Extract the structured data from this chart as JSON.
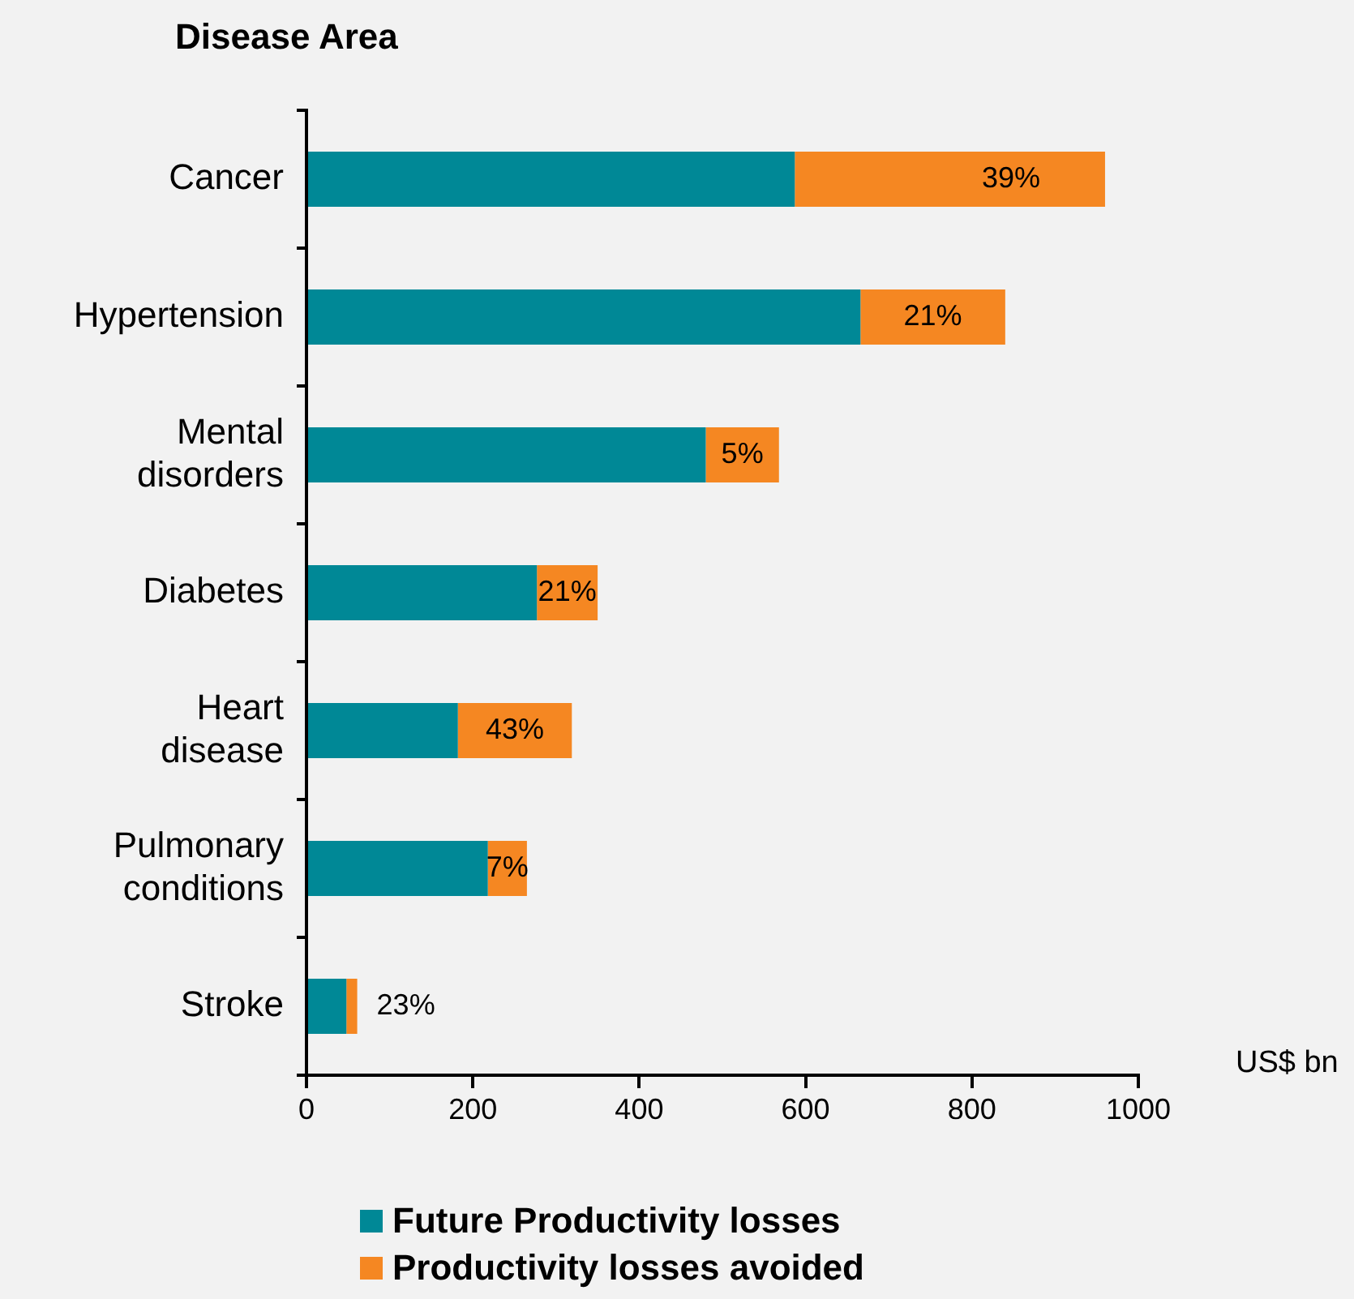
{
  "chart_data": {
    "type": "bar",
    "orientation": "horizontal",
    "stacked": true,
    "title": "Disease Area",
    "xlabel": "US$ bn",
    "categories": [
      "Cancer",
      "Hypertension",
      "Mental disorders",
      "Diabetes",
      "Heart disease",
      "Pulmonary conditions",
      "Stroke"
    ],
    "series": [
      {
        "name": "Future Productivity losses",
        "color": "#008896",
        "values": [
          587,
          666,
          480,
          277,
          182,
          218,
          48
        ]
      },
      {
        "name": "Productivity losses avoided",
        "color": "#f58722",
        "values": [
          373,
          174,
          88,
          73,
          137,
          47,
          13
        ]
      }
    ],
    "annotations": [
      {
        "text": "39%",
        "x": 960,
        "y": "Cancer"
      },
      {
        "text": "21%",
        "x": 840,
        "y": "Hypertension"
      },
      {
        "text": "5%",
        "x": 568,
        "y": "Mental disorders"
      },
      {
        "text": "21%",
        "x": 350,
        "y": "Diabetes"
      },
      {
        "text": "43%",
        "x": 319,
        "y": "Heart disease"
      },
      {
        "text": "7%",
        "x": 265,
        "y": "Pulmonary conditions"
      },
      {
        "text": "23%",
        "x": 61,
        "y": "Stroke"
      }
    ],
    "xlim": [
      0,
      1000
    ],
    "xticks": [
      0,
      200,
      400,
      600,
      800,
      1000
    ],
    "grid": false,
    "legend": "bottom"
  }
}
